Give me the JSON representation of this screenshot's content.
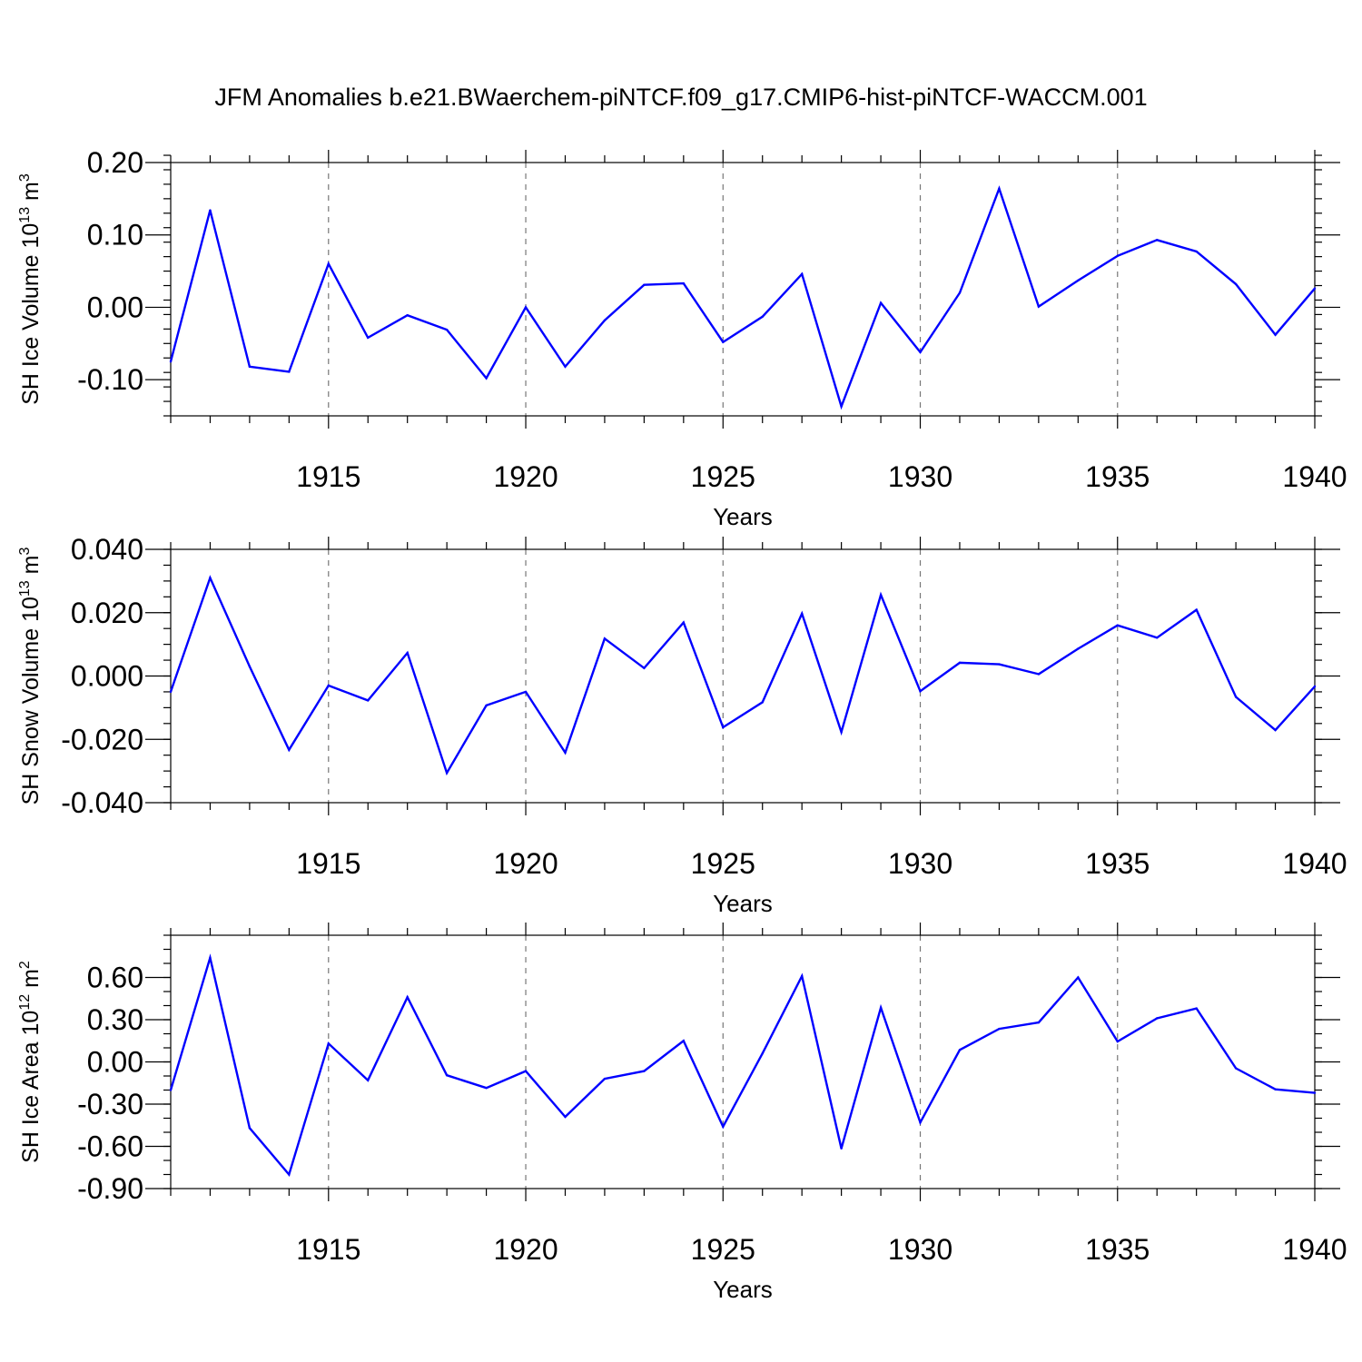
{
  "title": "JFM Anomalies b.e21.BWaerchem-piNTCF.f09_g17.CMIP6-hist-piNTCF-WACCM.001",
  "colors": {
    "series": "#0000ff",
    "grid": "#777777",
    "axis": "#000000"
  },
  "chart_data": [
    {
      "type": "line",
      "ylabel": "SH Ice Volume 10",
      "ylabel_exp1": "13",
      "ylabel_unit": " m",
      "ylabel_exp2": "3",
      "xlabel": "Years",
      "xlim": [
        1911,
        1940
      ],
      "ylim": [
        -0.15,
        0.2
      ],
      "yticks": [
        -0.1,
        0.0,
        0.1,
        0.2
      ],
      "ytick_labels": [
        "-0.10",
        "0.00",
        "0.10",
        "0.20"
      ],
      "yminor_step": 0.02,
      "xticks": [
        1915,
        1920,
        1925,
        1930,
        1935,
        1940
      ],
      "xtick_labels": [
        "1915",
        "1920",
        "1925",
        "1930",
        "1935",
        "1940"
      ],
      "x": [
        1911,
        1912,
        1913,
        1914,
        1915,
        1916,
        1917,
        1918,
        1919,
        1920,
        1921,
        1922,
        1923,
        1924,
        1925,
        1926,
        1927,
        1928,
        1929,
        1930,
        1931,
        1932,
        1933,
        1934,
        1935,
        1936,
        1937,
        1938,
        1939,
        1940
      ],
      "values": [
        -0.075,
        0.134,
        -0.082,
        -0.089,
        0.06,
        -0.042,
        -0.011,
        -0.031,
        -0.098,
        0.0,
        -0.082,
        -0.018,
        0.031,
        0.033,
        -0.048,
        -0.013,
        0.046,
        -0.137,
        0.006,
        -0.062,
        0.02,
        0.164,
        0.001,
        0.037,
        0.071,
        0.093,
        0.077,
        0.032,
        -0.038,
        0.026
      ]
    },
    {
      "type": "line",
      "ylabel": "SH Snow Volume 10",
      "ylabel_exp1": "13",
      "ylabel_unit": " m",
      "ylabel_exp2": "3",
      "xlabel": "Years",
      "xlim": [
        1911,
        1940
      ],
      "ylim": [
        -0.04,
        0.04
      ],
      "yticks": [
        -0.04,
        -0.02,
        0.0,
        0.02,
        0.04
      ],
      "ytick_labels": [
        "-0.040",
        "-0.020",
        "0.000",
        "0.020",
        "0.040"
      ],
      "yminor_step": 0.005,
      "xticks": [
        1915,
        1920,
        1925,
        1930,
        1935,
        1940
      ],
      "xtick_labels": [
        "1915",
        "1920",
        "1925",
        "1930",
        "1935",
        "1940"
      ],
      "x": [
        1911,
        1912,
        1913,
        1914,
        1915,
        1916,
        1917,
        1918,
        1919,
        1920,
        1921,
        1922,
        1923,
        1924,
        1925,
        1926,
        1927,
        1928,
        1929,
        1930,
        1931,
        1932,
        1933,
        1934,
        1935,
        1936,
        1937,
        1938,
        1939,
        1940
      ],
      "values": [
        -0.005,
        0.031,
        0.003,
        -0.0233,
        -0.003,
        -0.0077,
        0.0073,
        -0.0306,
        -0.0093,
        -0.005,
        -0.0242,
        0.0118,
        0.0025,
        0.0169,
        -0.0162,
        -0.0083,
        0.0197,
        -0.0177,
        0.0256,
        -0.0048,
        0.0042,
        0.0037,
        0.0006,
        0.0086,
        0.016,
        0.0121,
        0.0209,
        -0.0066,
        -0.0171,
        -0.0033
      ]
    },
    {
      "type": "line",
      "ylabel": "SH Ice Area 10",
      "ylabel_exp1": "12",
      "ylabel_unit": " m",
      "ylabel_exp2": "2",
      "xlabel": "Years",
      "xlim": [
        1911,
        1940
      ],
      "ylim": [
        -0.9,
        0.9
      ],
      "yticks": [
        -0.9,
        -0.6,
        -0.3,
        0.0,
        0.3,
        0.6
      ],
      "ytick_labels": [
        "-0.90",
        "-0.60",
        "-0.30",
        "0.00",
        "0.30",
        "0.60"
      ],
      "yminor_step": 0.1,
      "xticks": [
        1915,
        1920,
        1925,
        1930,
        1935,
        1940
      ],
      "xtick_labels": [
        "1915",
        "1920",
        "1925",
        "1930",
        "1935",
        "1940"
      ],
      "x": [
        1911,
        1912,
        1913,
        1914,
        1915,
        1916,
        1917,
        1918,
        1919,
        1920,
        1921,
        1922,
        1923,
        1924,
        1925,
        1926,
        1927,
        1928,
        1929,
        1930,
        1931,
        1932,
        1933,
        1934,
        1935,
        1936,
        1937,
        1938,
        1939,
        1940
      ],
      "values": [
        -0.2,
        0.74,
        -0.47,
        -0.8,
        0.13,
        -0.13,
        0.46,
        -0.095,
        -0.185,
        -0.065,
        -0.39,
        -0.12,
        -0.065,
        0.15,
        -0.46,
        0.06,
        0.61,
        -0.615,
        0.385,
        -0.43,
        0.085,
        0.235,
        0.28,
        0.6,
        0.145,
        0.31,
        0.38,
        -0.045,
        -0.195,
        -0.22
      ]
    }
  ]
}
